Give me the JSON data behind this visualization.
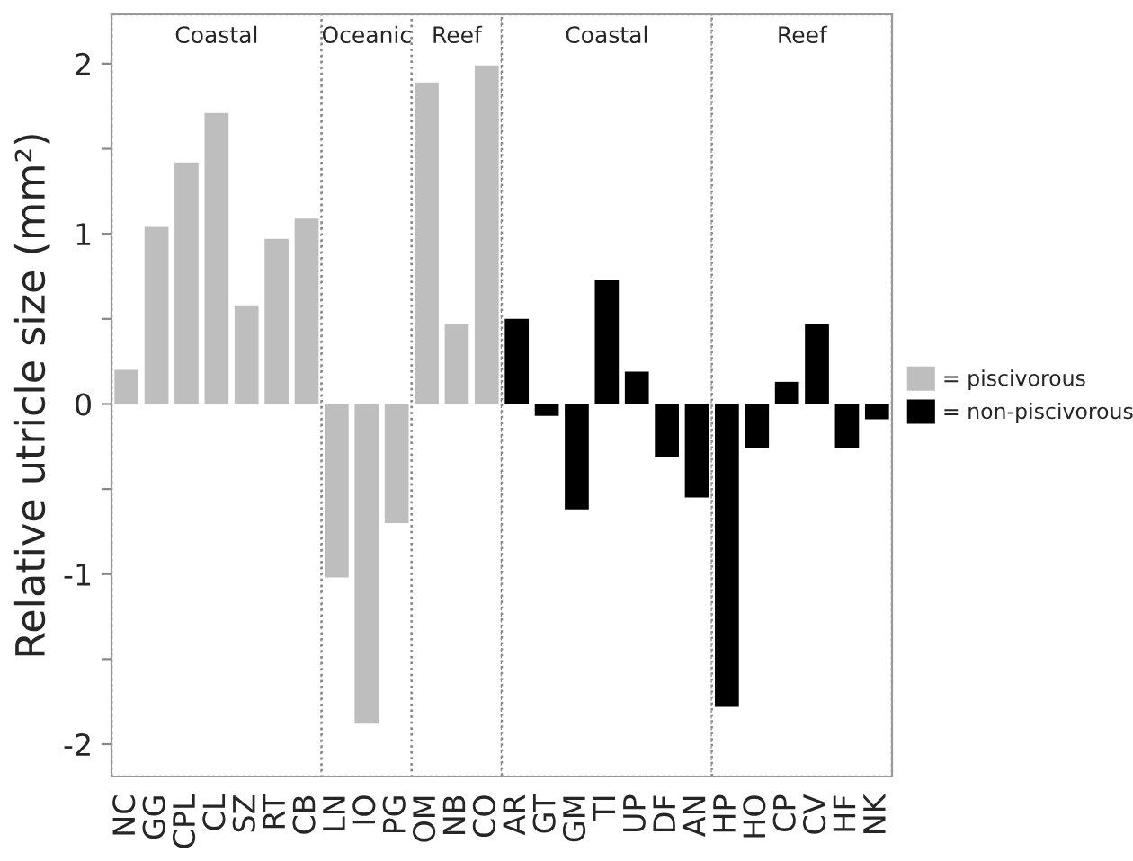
{
  "chart_data": {
    "type": "bar",
    "ylabel": "Relative utricle size (mm²)",
    "categories": [
      "NC",
      "GG",
      "CPL",
      "CL",
      "SZ",
      "RT",
      "CB",
      "LN",
      "IO",
      "PG",
      "OM",
      "NB",
      "CO",
      "AR",
      "GT",
      "GM",
      "TI",
      "UP",
      "DF",
      "AN",
      "HP",
      "HO",
      "CP",
      "CV",
      "HF",
      "NK"
    ],
    "series": [
      {
        "name": "= piscivorous",
        "color": "#bebebe",
        "values": [
          0.2,
          1.04,
          1.42,
          1.71,
          0.58,
          0.97,
          1.09,
          -1.02,
          -1.88,
          -0.7,
          1.89,
          0.47,
          1.99,
          null,
          null,
          null,
          null,
          null,
          null,
          null,
          null,
          null,
          null,
          null,
          null,
          null
        ]
      },
      {
        "name": "= non-piscivorous",
        "color": "#000000",
        "values": [
          null,
          null,
          null,
          null,
          null,
          null,
          null,
          null,
          null,
          null,
          null,
          null,
          null,
          0.5,
          -0.07,
          -0.62,
          0.73,
          0.19,
          -0.31,
          -0.55,
          -1.78,
          -0.26,
          0.13,
          0.47,
          -0.26,
          -0.09
        ]
      }
    ],
    "bands": [
      {
        "axis": "x",
        "from": "NC",
        "to": "CB",
        "label": "Coastal"
      },
      {
        "axis": "x",
        "from": "LN",
        "to": "PG",
        "label": "Oceanic"
      },
      {
        "axis": "x",
        "from": "OM",
        "to": "CO",
        "label": "Reef"
      },
      {
        "axis": "x",
        "from": "AR",
        "to": "AN",
        "label": "Coastal"
      },
      {
        "axis": "x",
        "from": "HP",
        "to": "NK",
        "label": "Reef"
      }
    ],
    "ylim": [
      -2.19,
      2.29
    ],
    "yticks": [
      -2,
      {
        "value": -1.5,
        "label": null
      },
      -1,
      {
        "value": -0.5,
        "label": null
      },
      0,
      {
        "value": 0.5,
        "label": null
      },
      1,
      {
        "value": 1.5,
        "label": null
      },
      2
    ],
    "grid": false,
    "legend": "right"
  }
}
